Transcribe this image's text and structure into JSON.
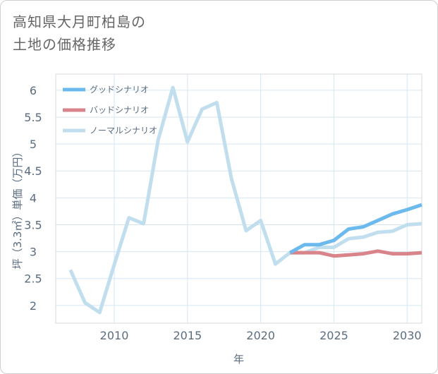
{
  "title": {
    "line1": "高知県大月町柏島の",
    "line2": "土地の価格推移"
  },
  "chart_data": {
    "type": "line",
    "title": "高知県大月町柏島の土地の価格推移",
    "xlabel": "年",
    "ylabel": "坪（3.3㎡）単価（万円）",
    "xlim": [
      2006,
      2031
    ],
    "ylim": [
      1.67,
      6.3
    ],
    "xticks": [
      2010,
      2015,
      2020,
      2025,
      2030
    ],
    "yticks": [
      2,
      2.5,
      3,
      3.5,
      4,
      4.5,
      5,
      5.5,
      6
    ],
    "legend_position": "top-left",
    "grid": true,
    "series": [
      {
        "name": "グッドシナリオ",
        "color": "#6cb9ee",
        "x": [
          2022,
          2023,
          2024,
          2025,
          2026,
          2027,
          2028,
          2029,
          2030,
          2031
        ],
        "y": [
          2.98,
          3.13,
          3.13,
          3.21,
          3.42,
          3.46,
          3.58,
          3.7,
          3.78,
          3.87
        ]
      },
      {
        "name": "バッドシナリオ",
        "color": "#d9848b",
        "x": [
          2022,
          2023,
          2024,
          2025,
          2026,
          2027,
          2028,
          2029,
          2030,
          2031
        ],
        "y": [
          2.98,
          2.98,
          2.98,
          2.92,
          2.94,
          2.96,
          3.01,
          2.96,
          2.96,
          2.98
        ]
      },
      {
        "name": "ノーマルシナリオ",
        "color": "#c0deed",
        "x": [
          2007,
          2008,
          2009,
          2010,
          2011,
          2012,
          2013,
          2014,
          2015,
          2016,
          2017,
          2018,
          2019,
          2020,
          2021,
          2022,
          2023,
          2024,
          2025,
          2026,
          2027,
          2028,
          2029,
          2030,
          2031
        ],
        "y": [
          2.66,
          2.05,
          1.87,
          2.76,
          3.63,
          3.52,
          5.08,
          6.05,
          5.04,
          5.65,
          5.77,
          4.36,
          3.39,
          3.58,
          2.77,
          2.98,
          2.98,
          3.08,
          3.08,
          3.24,
          3.27,
          3.36,
          3.38,
          3.5,
          3.52
        ]
      }
    ]
  }
}
